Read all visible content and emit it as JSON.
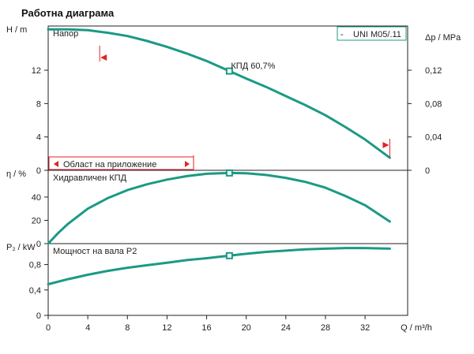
{
  "title": "Работна диаграма",
  "chart_data": [
    {
      "type": "line",
      "panel": "head",
      "title": "Напор",
      "ylabel": "H / m",
      "y2label": "Δp / MPa",
      "ylim": [
        0,
        17.3
      ],
      "yticks": [
        0,
        4,
        8,
        12
      ],
      "y2ticks": [
        0,
        0.04,
        0.08,
        0.12
      ],
      "y2ticklabels": [
        "0",
        "0,04",
        "0,08",
        "0,12"
      ],
      "legend": "UNI M05/.11",
      "legend_prefix": "-",
      "annotation": "КПД  60,7%",
      "range_label": "Област на приложение",
      "series": [
        {
          "name": "UNI M05/.11",
          "x": [
            0,
            2,
            4,
            6,
            8,
            10,
            12,
            14,
            16,
            18.3,
            20,
            22,
            24,
            26,
            28,
            30,
            32,
            34.5
          ],
          "values": [
            16.9,
            16.9,
            16.8,
            16.5,
            16.1,
            15.5,
            14.8,
            14.0,
            13.1,
            11.9,
            11.0,
            10.0,
            8.9,
            7.8,
            6.6,
            5.2,
            3.7,
            1.5
          ]
        }
      ],
      "markers": [
        {
          "x": 18.3,
          "y": 11.9
        }
      ],
      "range": [
        5.2,
        34.5
      ]
    },
    {
      "type": "line",
      "panel": "efficiency",
      "title": "Хидравличен КПД",
      "ylabel": "η / %",
      "ylim": [
        0,
        63
      ],
      "yticks": [
        0,
        20,
        40
      ],
      "series": [
        {
          "name": "Хидравличен КПД",
          "x": [
            0,
            1,
            2,
            4,
            6,
            8,
            10,
            12,
            14,
            16,
            18.3,
            20,
            22,
            24,
            26,
            28,
            30,
            32,
            34.5
          ],
          "values": [
            0,
            9,
            17,
            30,
            39,
            46,
            51,
            55,
            58,
            60,
            60.7,
            60.4,
            59,
            56.5,
            53,
            48,
            41,
            33,
            19
          ]
        }
      ],
      "markers": [
        {
          "x": 18.3,
          "y": 60.7
        }
      ]
    },
    {
      "type": "line",
      "panel": "power",
      "title": "Мощност на вала P2",
      "ylabel": "P₂ / kW",
      "ylim": [
        0,
        1.13
      ],
      "yticks": [
        0,
        0.4,
        0.8
      ],
      "yticklabels": [
        "0",
        "0,4",
        "0,8"
      ],
      "xlabel": "Q / m³/h",
      "xticks": [
        0,
        4,
        8,
        12,
        16,
        20,
        24,
        28,
        32
      ],
      "series": [
        {
          "name": "Мощност на вала P2",
          "x": [
            0,
            2,
            4,
            6,
            8,
            10,
            12,
            14,
            16,
            18.3,
            20,
            22,
            24,
            26,
            28,
            30,
            32,
            34.5
          ],
          "values": [
            0.49,
            0.57,
            0.64,
            0.7,
            0.75,
            0.79,
            0.83,
            0.87,
            0.9,
            0.94,
            0.97,
            1.0,
            1.02,
            1.04,
            1.05,
            1.06,
            1.06,
            1.05
          ]
        }
      ],
      "markers": [
        {
          "x": 18.3,
          "y": 0.94
        }
      ]
    }
  ],
  "colors": {
    "curve": "#1b9a83",
    "range": "#e5202a",
    "axis": "#222222",
    "grid": "#222222"
  }
}
